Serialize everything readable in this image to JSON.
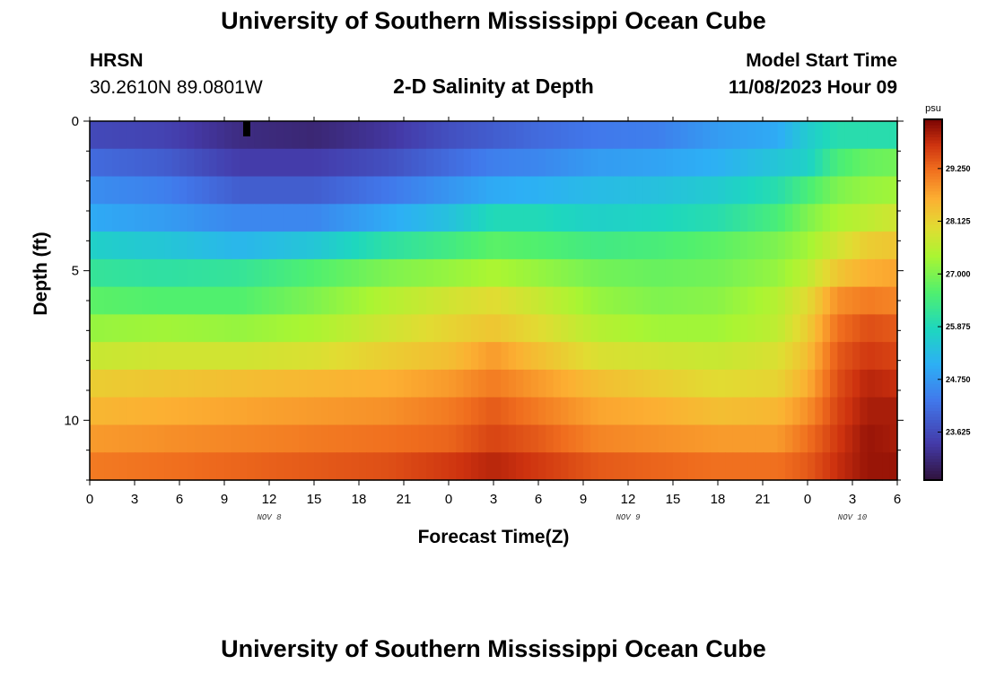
{
  "header": {
    "title_top": "University of Southern Mississippi Ocean Cube",
    "title_bottom": "University of Southern Mississippi Ocean Cube",
    "station": "HRSN",
    "coordinates": "30.2610N  89.0801W",
    "chart_title": "2-D Salinity at Depth",
    "model_start_label": "Model Start Time",
    "model_start_value": "11/08/2023 Hour 09"
  },
  "chart_data": {
    "type": "heatmap",
    "title": "2-D Salinity at Depth",
    "xlabel": "Forecast Time(Z)",
    "ylabel": "Depth (ft)",
    "x_tick_labels": [
      "0",
      "3",
      "6",
      "9",
      "12",
      "15",
      "18",
      "21",
      "0",
      "3",
      "6",
      "9",
      "12",
      "15",
      "18",
      "21",
      "0",
      "3",
      "6"
    ],
    "x_day_labels": [
      {
        "label": "NOV 8",
        "hour": 12
      },
      {
        "label": "NOV 9",
        "hour": 36
      },
      {
        "label": "NOV 10",
        "hour": 51
      }
    ],
    "x_range_hours": [
      0,
      54
    ],
    "y_ticks": [
      0,
      5,
      10
    ],
    "ylim": [
      0,
      12
    ],
    "depth_levels": [
      0,
      1,
      2,
      3,
      4,
      5,
      6,
      7,
      8,
      9,
      10,
      11,
      12
    ],
    "colorbar": {
      "unit": "psu",
      "ticks": [
        "29.250",
        "28.125",
        "27.000",
        "25.875",
        "24.750",
        "23.625"
      ],
      "range": [
        22.6,
        30.3
      ]
    },
    "profile_anchor_hours": [
      0,
      5,
      10,
      15,
      20,
      24,
      27,
      30,
      34,
      38,
      42,
      46,
      48,
      50,
      52,
      54
    ],
    "salinity_profiles": [
      [
        23.6,
        23.5,
        23.1,
        23.0,
        23.3,
        23.7,
        23.9,
        24.1,
        24.3,
        24.4,
        24.8,
        25.0,
        25.6,
        26.0,
        26.0,
        26.0
      ],
      [
        24.1,
        23.9,
        23.4,
        23.4,
        23.7,
        24.1,
        24.4,
        24.5,
        24.8,
        24.9,
        25.1,
        25.5,
        25.7,
        26.5,
        26.8,
        26.9
      ],
      [
        24.6,
        24.4,
        23.9,
        23.9,
        24.3,
        24.7,
        25.0,
        25.1,
        25.3,
        25.4,
        25.6,
        26.0,
        26.5,
        27.0,
        27.2,
        27.3
      ],
      [
        25.0,
        24.8,
        24.5,
        24.5,
        25.0,
        25.4,
        25.9,
        25.9,
        25.7,
        25.8,
        26.0,
        26.5,
        27.0,
        27.4,
        27.6,
        27.8
      ],
      [
        25.7,
        25.5,
        25.2,
        25.5,
        26.1,
        26.4,
        26.7,
        26.6,
        26.4,
        26.5,
        26.7,
        27.0,
        27.3,
        27.8,
        28.2,
        28.3
      ],
      [
        26.2,
        26.1,
        26.2,
        26.6,
        27.0,
        27.2,
        27.4,
        27.2,
        26.9,
        26.8,
        26.9,
        27.2,
        27.6,
        28.3,
        28.6,
        28.7
      ],
      [
        26.7,
        26.6,
        26.6,
        27.0,
        27.5,
        27.8,
        28.0,
        27.7,
        27.2,
        27.0,
        27.1,
        27.5,
        28.0,
        28.9,
        29.1,
        29.0
      ],
      [
        27.2,
        27.3,
        27.2,
        27.4,
        27.8,
        28.1,
        28.3,
        28.0,
        27.5,
        27.3,
        27.3,
        27.6,
        28.2,
        29.2,
        29.5,
        29.4
      ],
      [
        27.7,
        27.8,
        27.8,
        27.9,
        28.2,
        28.4,
        28.8,
        28.4,
        27.9,
        27.8,
        27.7,
        27.9,
        28.4,
        29.4,
        29.7,
        29.6
      ],
      [
        28.2,
        28.3,
        28.4,
        28.5,
        28.6,
        28.8,
        29.1,
        28.8,
        28.4,
        28.2,
        28.0,
        28.1,
        28.6,
        29.5,
        29.9,
        29.8
      ],
      [
        28.5,
        28.6,
        28.7,
        28.8,
        28.9,
        29.1,
        29.4,
        29.1,
        28.7,
        28.6,
        28.4,
        28.5,
        28.9,
        29.6,
        30.0,
        30.0
      ],
      [
        28.8,
        28.9,
        29.0,
        29.1,
        29.2,
        29.3,
        29.6,
        29.4,
        29.0,
        28.9,
        28.8,
        28.8,
        29.2,
        29.7,
        30.1,
        30.0
      ],
      [
        29.1,
        29.2,
        29.3,
        29.4,
        29.5,
        29.7,
        29.9,
        29.7,
        29.4,
        29.3,
        29.2,
        29.2,
        29.4,
        29.8,
        30.1,
        30.1
      ]
    ],
    "marker_hour": 10.5
  }
}
